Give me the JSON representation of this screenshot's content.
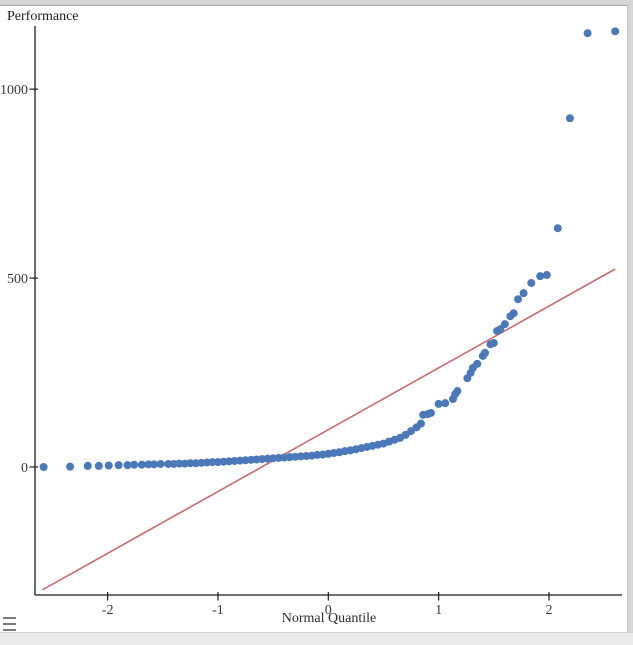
{
  "window": {
    "background_color": "#d6d6d6",
    "panel_color": "#ffffff",
    "bottom_bar_color": "#ebebeb"
  },
  "menu": {
    "icon": "hamburger-icon"
  },
  "chart": {
    "title": "Performance",
    "x_axis_label": "Normal Quantile"
  },
  "chart_data": {
    "type": "scatter",
    "title": "Performance",
    "xlabel": "Normal Quantile",
    "ylabel": "Performance",
    "xlim": [
      -2.66,
      2.66
    ],
    "ylim": [
      -340,
      1170
    ],
    "grid": false,
    "legend": null,
    "point_color": "#4a78b8",
    "axis_color": "#1c1c1c",
    "x_ticks": [
      {
        "value": -2,
        "label": "-2"
      },
      {
        "value": -1,
        "label": "-1"
      },
      {
        "value": 0,
        "label": "0"
      },
      {
        "value": 1,
        "label": "1"
      },
      {
        "value": 2,
        "label": "2"
      }
    ],
    "y_ticks": [
      {
        "value": 0,
        "label": "0"
      },
      {
        "value": 500,
        "label": "500"
      },
      {
        "value": 1000,
        "label": "1000"
      }
    ],
    "reference_line": {
      "color": "#cb6a70",
      "x1": -2.59,
      "y1": -325,
      "x2": 2.6,
      "y2": 524
    },
    "points": [
      [
        -2.58,
        0
      ],
      [
        -2.34,
        1
      ],
      [
        -2.18,
        3
      ],
      [
        -2.08,
        3
      ],
      [
        -1.99,
        4
      ],
      [
        -1.9,
        5
      ],
      [
        -1.82,
        5
      ],
      [
        -1.76,
        6
      ],
      [
        -1.69,
        6
      ],
      [
        -1.63,
        7
      ],
      [
        -1.58,
        7
      ],
      [
        -1.52,
        8
      ],
      [
        -1.45,
        8
      ],
      [
        -1.4,
        8
      ],
      [
        -1.35,
        9
      ],
      [
        -1.3,
        9
      ],
      [
        -1.25,
        10
      ],
      [
        -1.2,
        10
      ],
      [
        -1.15,
        11
      ],
      [
        -1.1,
        12
      ],
      [
        -1.05,
        13
      ],
      [
        -1.0,
        13
      ],
      [
        -0.95,
        14
      ],
      [
        -0.9,
        15
      ],
      [
        -0.85,
        16
      ],
      [
        -0.8,
        17
      ],
      [
        -0.75,
        18
      ],
      [
        -0.7,
        19
      ],
      [
        -0.65,
        20
      ],
      [
        -0.6,
        21
      ],
      [
        -0.55,
        22
      ],
      [
        -0.5,
        23
      ],
      [
        -0.45,
        24
      ],
      [
        -0.4,
        25
      ],
      [
        -0.35,
        26
      ],
      [
        -0.3,
        27
      ],
      [
        -0.25,
        28
      ],
      [
        -0.2,
        29
      ],
      [
        -0.15,
        30
      ],
      [
        -0.1,
        32
      ],
      [
        -0.05,
        33
      ],
      [
        0.0,
        35
      ],
      [
        0.05,
        37
      ],
      [
        0.1,
        39
      ],
      [
        0.15,
        42
      ],
      [
        0.2,
        44
      ],
      [
        0.25,
        47
      ],
      [
        0.3,
        50
      ],
      [
        0.35,
        53
      ],
      [
        0.4,
        56
      ],
      [
        0.45,
        59
      ],
      [
        0.5,
        62
      ],
      [
        0.55,
        67
      ],
      [
        0.6,
        72
      ],
      [
        0.65,
        77
      ],
      [
        0.7,
        85
      ],
      [
        0.75,
        95
      ],
      [
        0.8,
        105
      ],
      [
        0.84,
        115
      ],
      [
        0.86,
        138
      ],
      [
        0.9,
        140
      ],
      [
        0.93,
        143
      ],
      [
        1.0,
        167
      ],
      [
        1.06,
        169
      ],
      [
        1.13,
        180
      ],
      [
        1.15,
        193
      ],
      [
        1.17,
        201
      ],
      [
        1.26,
        235
      ],
      [
        1.29,
        249
      ],
      [
        1.31,
        262
      ],
      [
        1.35,
        273
      ],
      [
        1.4,
        294
      ],
      [
        1.42,
        302
      ],
      [
        1.47,
        325
      ],
      [
        1.5,
        328
      ],
      [
        1.53,
        360
      ],
      [
        1.56,
        365
      ],
      [
        1.6,
        378
      ],
      [
        1.65,
        399
      ],
      [
        1.68,
        407
      ],
      [
        1.72,
        444
      ],
      [
        1.77,
        460
      ],
      [
        1.84,
        487
      ],
      [
        1.92,
        505
      ],
      [
        1.98,
        508
      ],
      [
        2.08,
        632
      ],
      [
        2.19,
        923
      ],
      [
        2.35,
        1148
      ],
      [
        2.6,
        1153
      ]
    ]
  }
}
